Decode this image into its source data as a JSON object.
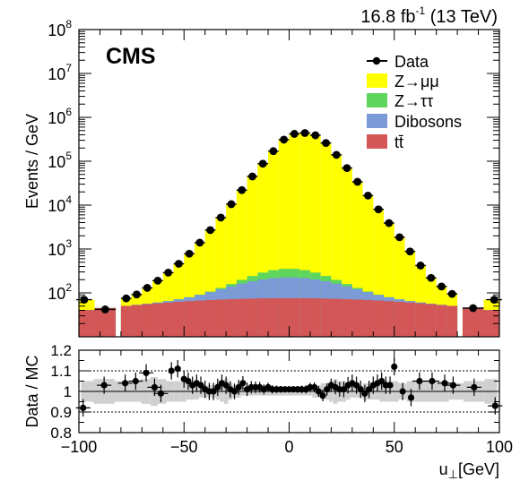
{
  "header": {
    "lumi_value": "16.8 fb",
    "lumi_exp": "-1",
    "energy": " (13 TeV)"
  },
  "experiment_label": "CMS",
  "colors": {
    "zmumu": "#ffff00",
    "ztautau": "#5ed65e",
    "dibosons": "#7b9ad6",
    "ttbar": "#d45757",
    "data": "#000000",
    "band": "#d0d0d0"
  },
  "chart_data": [
    {
      "type": "area",
      "ylabel": "Events / GeV",
      "ylim": [
        10,
        100000000
      ],
      "yscale": "log",
      "y_ticks": [
        "10",
        "10",
        "10",
        "10",
        "10",
        "10",
        "10"
      ],
      "y_tick_exps": [
        "2",
        "3",
        "4",
        "5",
        "6",
        "7",
        "8"
      ],
      "x": [
        -97.5,
        -87.5,
        -77.5,
        -72.5,
        -67.5,
        -62.5,
        -57.5,
        -52.5,
        -47.5,
        -42.5,
        -37.5,
        -32.5,
        -27.5,
        -22.5,
        -17.5,
        -12.5,
        -7.5,
        -2.5,
        2.5,
        7.5,
        12.5,
        17.5,
        22.5,
        27.5,
        32.5,
        37.5,
        42.5,
        47.5,
        52.5,
        57.5,
        62.5,
        67.5,
        72.5,
        77.5,
        87.5,
        97.5
      ],
      "legend": [
        "Data",
        "Z→μμ",
        "Z→ττ",
        "Dibosons",
        "tt̄"
      ],
      "legend_position": "top-right",
      "series": [
        {
          "name": "Data",
          "kind": "points",
          "values": [
            70,
            42,
            75,
            92,
            130,
            190,
            290,
            460,
            780,
            1400,
            2700,
            5200,
            10500,
            22000,
            45000,
            88000,
            170000,
            310000,
            420000,
            440000,
            390000,
            260000,
            140000,
            70000,
            34000,
            16500,
            8000,
            3900,
            1850,
            880,
            420,
            220,
            140,
            95,
            45,
            70
          ]
        }
      ]
    },
    {
      "type": "scatter",
      "ylabel": "Data / MC",
      "xlabel": "u",
      "xlabel_sub": "⊥",
      "xlabel_unit": "[GeV]",
      "ylim": [
        0.8,
        1.2
      ],
      "y_ticks": [
        "0.8",
        "0.9",
        "1",
        "1.1",
        "1.2"
      ],
      "x_ticks": [
        "−100",
        "−50",
        "0",
        "50",
        "100"
      ],
      "xlim": [
        -100,
        100
      ],
      "x": [
        -98,
        -88,
        -78,
        -73,
        -68,
        -64,
        -61,
        -56,
        -53,
        -50,
        -48,
        -46,
        -44,
        -42,
        -40,
        -38,
        -36,
        -34,
        -32,
        -30,
        -28,
        -26,
        -24,
        -22,
        -20,
        -18,
        -16,
        -14,
        -12,
        -10,
        -8,
        -6,
        -4,
        -2,
        0,
        2,
        4,
        6,
        8,
        10,
        12,
        14,
        16,
        18,
        20,
        22,
        24,
        26,
        28,
        30,
        32,
        34,
        36,
        38,
        40,
        42,
        44,
        46,
        48,
        50,
        54,
        58,
        62,
        68,
        74,
        78,
        88,
        98
      ],
      "values": [
        0.92,
        1.03,
        1.04,
        1.05,
        1.09,
        1.02,
        0.99,
        1.1,
        1.11,
        1.06,
        1.05,
        1.03,
        1.04,
        1.03,
        1.01,
        1.0,
        1.0,
        1.02,
        1.04,
        1.03,
        1.01,
        1.0,
        1.02,
        1.04,
        1.01,
        1.02,
        1.02,
        1.02,
        1.01,
        1.02,
        1.01,
        1.01,
        1.01,
        1.01,
        1.01,
        1.01,
        1.01,
        1.01,
        1.01,
        1.02,
        1.02,
        1.0,
        0.98,
        1.01,
        1.03,
        1.02,
        1.01,
        1.01,
        1.03,
        1.04,
        1.03,
        1.01,
        0.99,
        1.01,
        1.03,
        1.04,
        1.05,
        1.03,
        1.03,
        1.12,
        1.0,
        0.97,
        1.05,
        1.05,
        1.04,
        1.03,
        1.02,
        0.93
      ],
      "band": [
        0.05,
        0.06,
        0.05,
        0.05,
        0.06,
        0.07,
        0.06,
        0.05,
        0.05,
        0.05,
        0.04,
        0.04,
        0.04,
        0.03,
        0.03,
        0.03,
        0.03,
        0.04,
        0.05,
        0.06,
        0.04,
        0.03,
        0.03,
        0.02,
        0.02,
        0.02,
        0.02,
        0.02,
        0.02,
        0.02,
        0.02,
        0.02,
        0.02,
        0.02,
        0.02,
        0.02,
        0.02,
        0.02,
        0.02,
        0.02,
        0.03,
        0.03,
        0.04,
        0.04,
        0.05,
        0.06,
        0.05,
        0.05,
        0.04,
        0.03,
        0.03,
        0.03,
        0.04,
        0.04,
        0.04,
        0.04,
        0.05,
        0.05,
        0.05,
        0.05,
        0.04,
        0.05,
        0.05,
        0.05,
        0.05,
        0.04,
        0.05,
        0.06
      ]
    }
  ]
}
